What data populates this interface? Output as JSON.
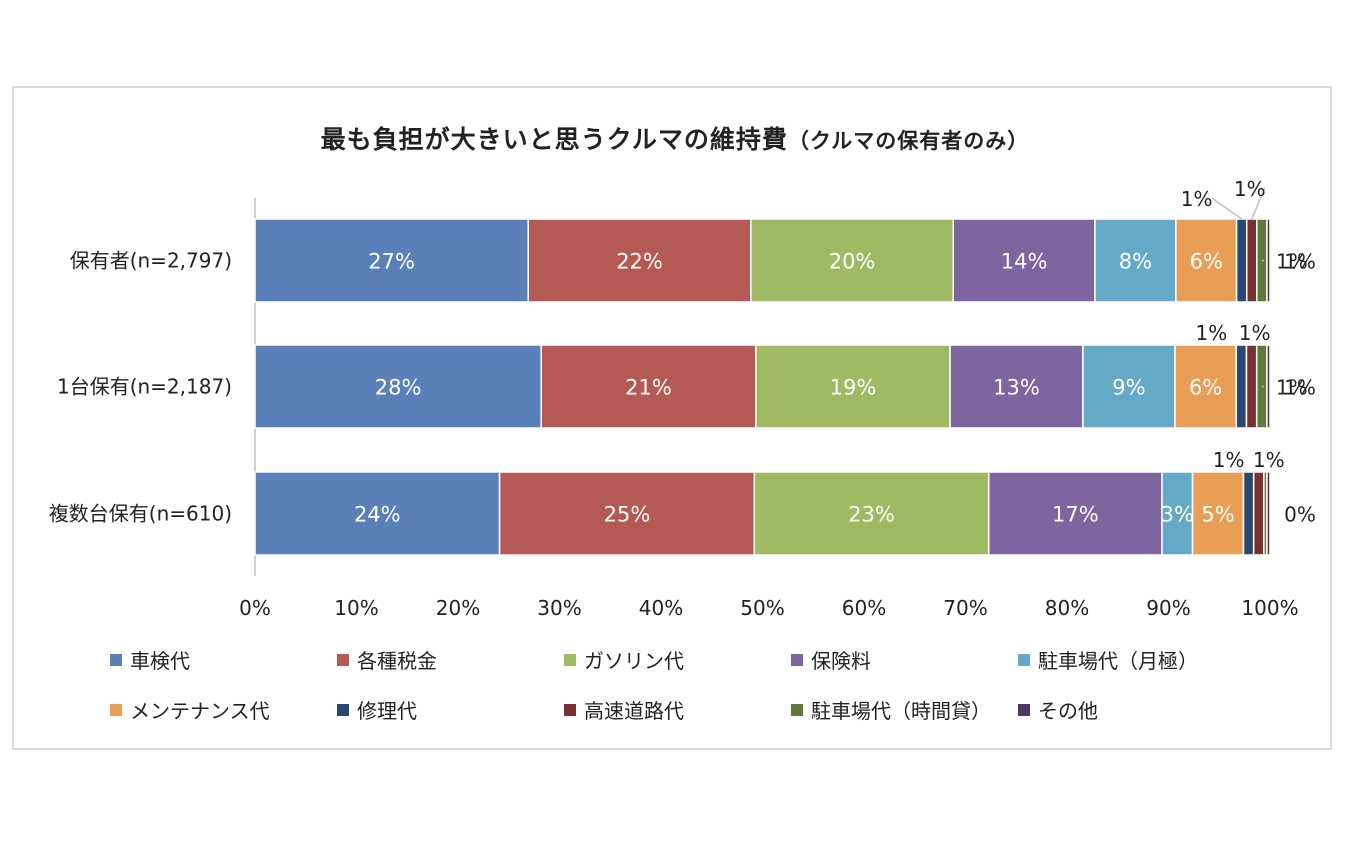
{
  "chart_data": {
    "type": "bar",
    "orientation": "horizontal-stacked",
    "title": "最も負担が大きいと思うクルマの維持費",
    "subtitle": "（クルマの保有者のみ）",
    "categories": [
      "保有者(n=2,797)",
      "1台保有(n=2,187)",
      "複数台保有(n=610)"
    ],
    "xlim": [
      0,
      100
    ],
    "x_ticks": [
      "0%",
      "10%",
      "20%",
      "30%",
      "40%",
      "50%",
      "60%",
      "70%",
      "80%",
      "90%",
      "100%"
    ],
    "grid": false,
    "legend_position": "bottom",
    "series": [
      {
        "name": "車検代",
        "color": "#5b7fb8",
        "values": [
          27,
          28,
          24
        ],
        "labels": [
          "27%",
          "28%",
          "24%"
        ]
      },
      {
        "name": "各種税金",
        "color": "#b45954",
        "values": [
          22,
          21,
          25
        ],
        "labels": [
          "22%",
          "21%",
          "25%"
        ]
      },
      {
        "name": "ガソリン代",
        "color": "#9ebb63",
        "values": [
          20,
          19,
          23
        ],
        "labels": [
          "20%",
          "19%",
          "23%"
        ]
      },
      {
        "name": "保険料",
        "color": "#7d65a0",
        "values": [
          14,
          13,
          17
        ],
        "labels": [
          "14%",
          "13%",
          "17%"
        ]
      },
      {
        "name": "駐車場代（月極）",
        "color": "#64a9c5",
        "values": [
          8,
          9,
          3
        ],
        "labels": [
          "8%",
          "9%",
          "3%"
        ]
      },
      {
        "name": "メンテナンス代",
        "color": "#e99e56",
        "values": [
          6,
          6,
          5
        ],
        "labels": [
          "6%",
          "6%",
          "5%"
        ]
      },
      {
        "name": "修理代",
        "color": "#2b4770",
        "values": [
          1,
          1,
          1
        ],
        "labels": [
          "1%",
          "1%",
          "1%"
        ]
      },
      {
        "name": "高速道路代",
        "color": "#7b3030",
        "values": [
          1,
          1,
          1
        ],
        "labels": [
          "1%",
          "1%",
          "1%"
        ]
      },
      {
        "name": "駐車場代（時間貸）",
        "color": "#617a3b",
        "values": [
          1,
          1,
          0.3
        ],
        "labels": [
          "1%",
          "1%",
          ""
        ]
      },
      {
        "name": "その他",
        "color": "#4a3a5e",
        "values": [
          0.3,
          0.3,
          0.3
        ],
        "labels": [
          "",
          "",
          ""
        ]
      }
    ],
    "overflow_labels": [
      {
        "row": 0,
        "text": "1%"
      },
      {
        "row": 1,
        "text": "1%"
      },
      {
        "row": 2,
        "text": "0%"
      }
    ]
  }
}
